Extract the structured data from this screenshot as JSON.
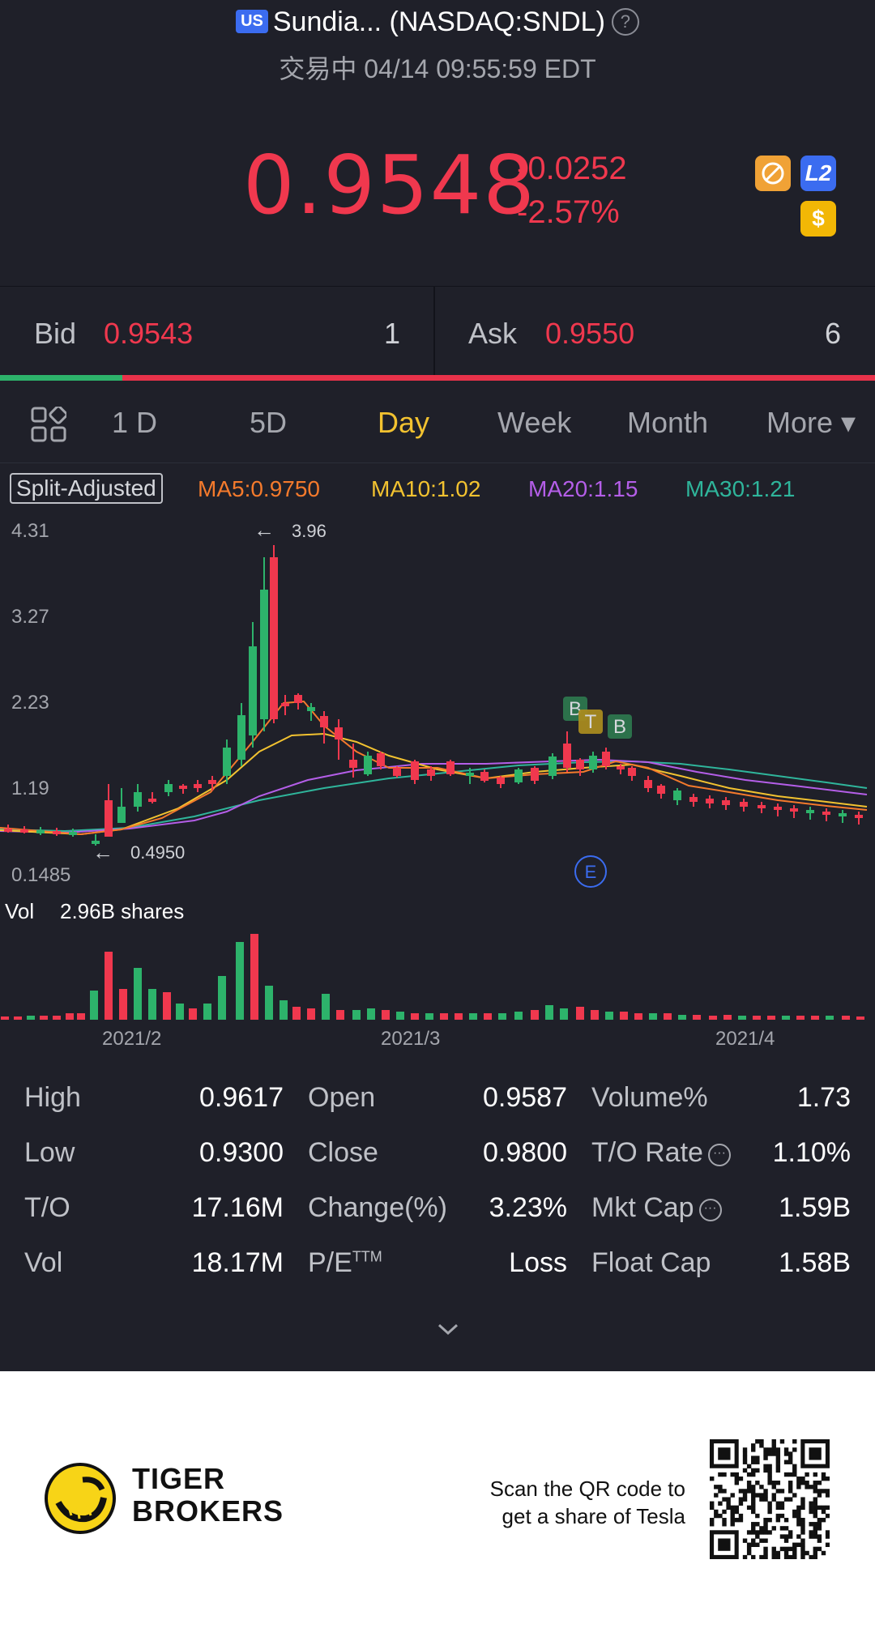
{
  "header": {
    "market_badge": "US",
    "title": "Sundia... (NASDAQ:SNDL)",
    "help_symbol": "?",
    "status": "交易中 04/14 09:55:59 EDT",
    "price": "0.9548",
    "change_abs": "-0.0252",
    "change_pct": "-2.57%",
    "badges": {
      "l2": "L2",
      "dollar": "$"
    }
  },
  "quote": {
    "bid_label": "Bid",
    "bid_price": "0.9543",
    "bid_size": "1",
    "ask_label": "Ask",
    "ask_price": "0.9550",
    "ask_size": "6",
    "bid_ratio": 0.14
  },
  "tabs": {
    "items": [
      "1 D",
      "5D",
      "Day",
      "Week",
      "Month",
      "More ▾"
    ],
    "active": "Day"
  },
  "chart": {
    "split_label": "Split-Adjusted",
    "ma5": "MA5:0.9750",
    "ma10": "MA10:1.02",
    "ma20": "MA20:1.15",
    "ma30": "MA30:1.21",
    "y_ticks": [
      "4.31",
      "3.27",
      "2.23",
      "1.19",
      "0.1485"
    ],
    "high_marker": "3.96",
    "low_marker": "0.4950",
    "event_markers": [
      "B",
      "T",
      "B",
      "E"
    ],
    "vol_label": "Vol",
    "vol_value": "2.96B shares",
    "x_ticks": [
      "2021/2",
      "2021/3",
      "2021/4"
    ],
    "colors": {
      "up": "#2db36b",
      "down": "#f0384e",
      "ma5": "#f47a2c",
      "ma10": "#f2c230",
      "ma20": "#b45ee8",
      "ma30": "#2fb59b"
    }
  },
  "chart_data": {
    "type": "candlestick",
    "y_range": [
      0.1485,
      4.31
    ],
    "x_ticks": [
      "2021/2",
      "2021/3",
      "2021/4"
    ],
    "high_label": 3.96,
    "low_label": 0.495,
    "ma": {
      "MA5": 0.975,
      "MA10": 1.02,
      "MA20": 1.15,
      "MA30": 1.21
    },
    "volume_total": "2.96B shares"
  },
  "stats": {
    "rows": [
      [
        {
          "label": "High",
          "value": "0.9617"
        },
        {
          "label": "Open",
          "value": "0.9587"
        },
        {
          "label": "Volume%",
          "value": "1.73"
        }
      ],
      [
        {
          "label": "Low",
          "value": "0.9300"
        },
        {
          "label": "Close",
          "value": "0.9800"
        },
        {
          "label": "T/O Rate",
          "value": "1.10%"
        }
      ],
      [
        {
          "label": "T/O",
          "value": "17.16M"
        },
        {
          "label": "Change(%)",
          "value": "3.23%"
        },
        {
          "label": "Mkt Cap",
          "value": "1.59B"
        }
      ],
      [
        {
          "label": "Vol",
          "value": "18.17M"
        },
        {
          "label": "P/E",
          "value": "Loss"
        },
        {
          "label": "Float Cap",
          "value": "1.58B"
        }
      ]
    ],
    "pe_superscript": "TTM"
  },
  "footer": {
    "brand_line1": "TIGER",
    "brand_line2": "BROKERS",
    "scan_line1": "Scan the QR code to",
    "scan_line2": "get a share of Tesla"
  }
}
